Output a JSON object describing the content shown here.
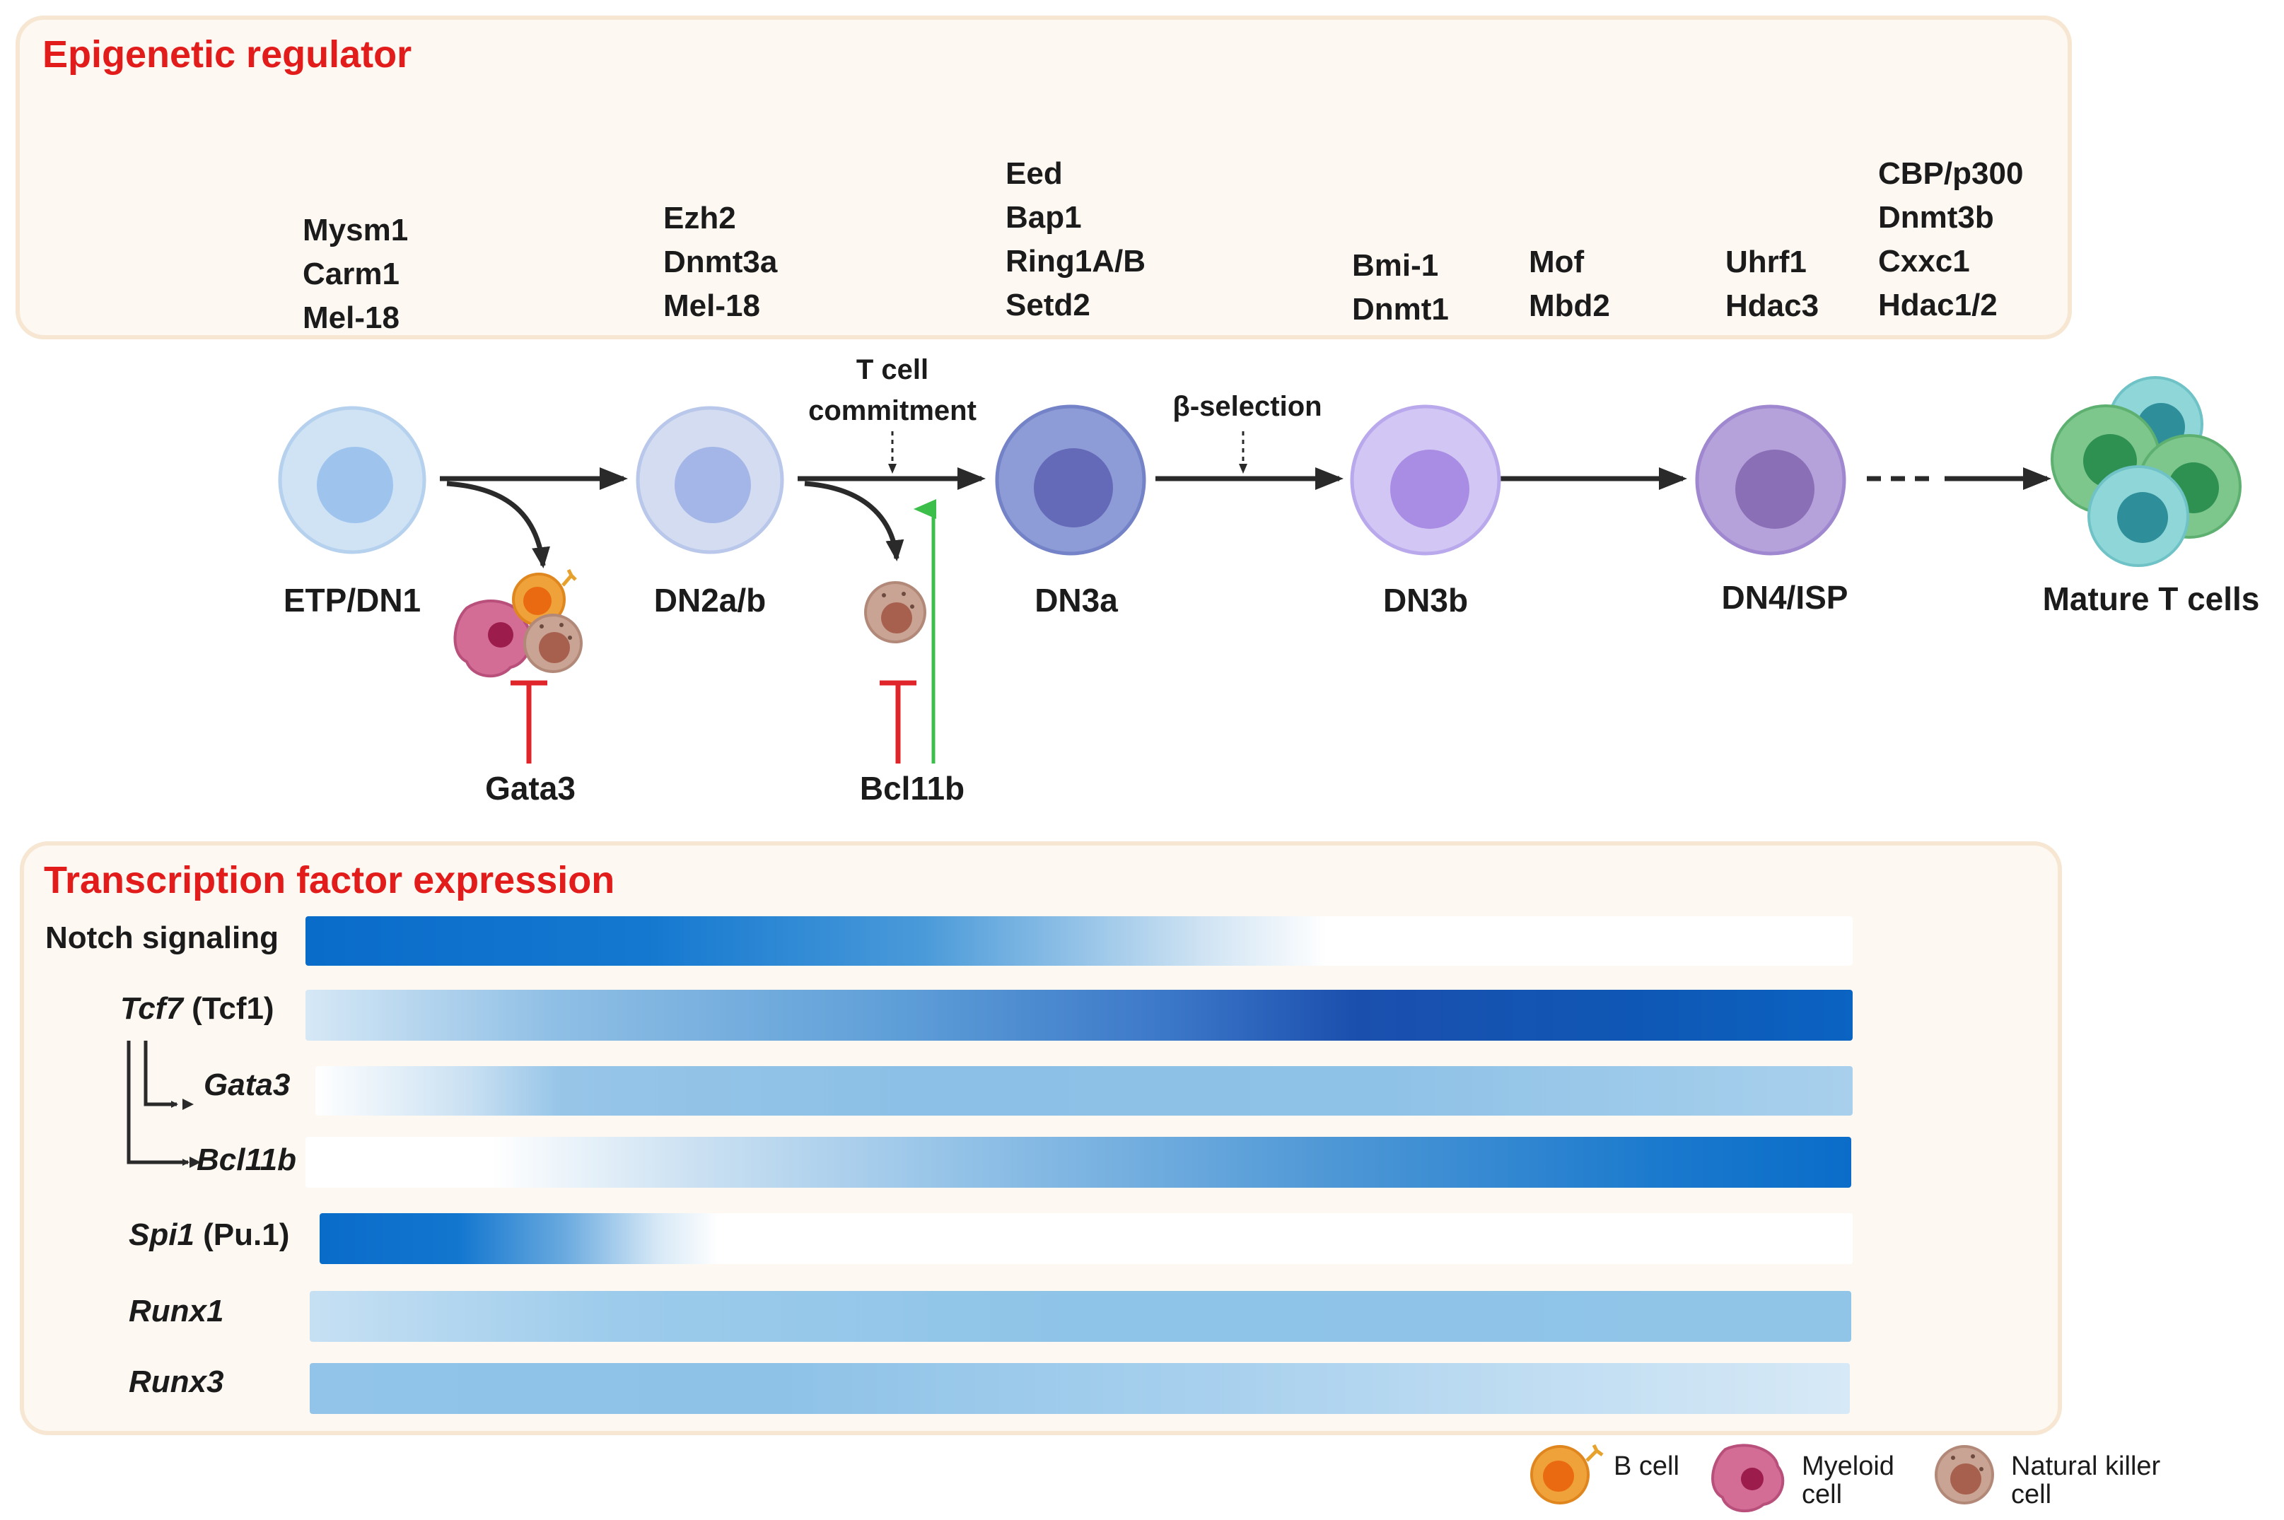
{
  "epigenetic": {
    "title": "Epigenetic regulator",
    "groups": [
      [
        "Mysm1",
        "Carm1",
        "Mel-18"
      ],
      [
        "Ezh2",
        "Dnmt3a",
        "Mel-18"
      ],
      [
        "Eed",
        "Bap1",
        "Ring1A/B",
        "Setd2"
      ],
      [
        "Bmi-1",
        "Dnmt1"
      ],
      [
        "Mof",
        "Mbd2"
      ],
      [
        "Uhrf1",
        "Hdac3"
      ],
      [
        "CBP/p300",
        "Dnmt3b",
        "Cxxc1",
        "Hdac1/2"
      ]
    ]
  },
  "stages": [
    "ETP/DN1",
    "DN2a/b",
    "DN3a",
    "DN3b",
    "DN4/ISP",
    "Mature T cells"
  ],
  "checkpoints": {
    "t_cell_commitment": [
      "T cell",
      "commitment"
    ],
    "beta_selection": "β-selection"
  },
  "regulators": {
    "gata3": "Gata3",
    "bcl11b": "Bcl11b"
  },
  "transcription": {
    "title": "Transcription factor expression",
    "rows": [
      {
        "name": "Notch signaling",
        "italic": "",
        "paren": ""
      },
      {
        "name": "",
        "italic": "Tcf7",
        "paren": "(Tcf1)"
      },
      {
        "name": "",
        "italic": "Gata3",
        "paren": ""
      },
      {
        "name": "",
        "italic": "Bcl11b",
        "paren": ""
      },
      {
        "name": "",
        "italic": "Spi1",
        "paren": "(Pu.1)"
      },
      {
        "name": "",
        "italic": "Runx1",
        "paren": ""
      },
      {
        "name": "",
        "italic": "Runx3",
        "paren": ""
      }
    ]
  },
  "legend": {
    "b_cell": "B cell",
    "myeloid": [
      "Myeloid",
      "cell"
    ],
    "nk": [
      "Natural killer",
      "cell"
    ]
  },
  "colors": {
    "title_red": "#e21b1b",
    "inhibit_red": "#e0252a",
    "activate_green": "#3bbf4a",
    "bar_blue": "#0a6cc9"
  }
}
